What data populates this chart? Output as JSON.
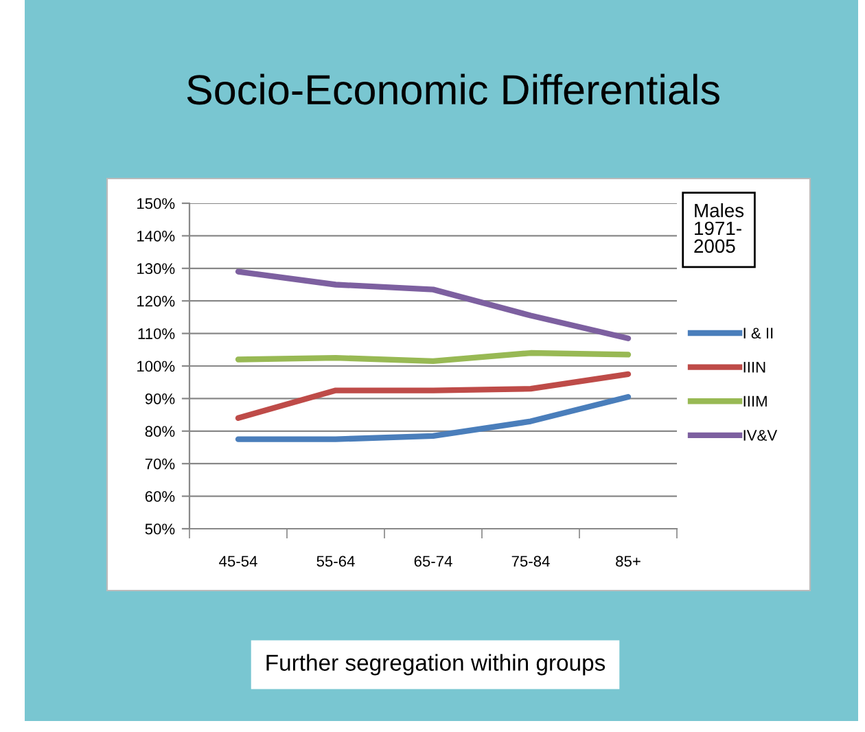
{
  "chart_data": {
    "type": "line",
    "title": "Socio-Economic Differentials",
    "legend_title": "Males\n1971-\n2005",
    "annotations": [
      "Further segregation within groups"
    ],
    "categories": [
      "45-54",
      "55-64",
      "65-74",
      "75-84",
      "85+"
    ],
    "series": [
      {
        "name": "I & II",
        "color": "#4a7ebb",
        "values": [
          77.5,
          77.5,
          78.5,
          83,
          90.5
        ]
      },
      {
        "name": "IIIN",
        "color": "#be4b48",
        "values": [
          84,
          92.5,
          92.5,
          93,
          97.5
        ]
      },
      {
        "name": "IIIM",
        "color": "#98b954",
        "values": [
          102,
          102.5,
          101.5,
          104,
          103.5
        ]
      },
      {
        "name": "IV&V",
        "color": "#7d60a0",
        "values": [
          129,
          125,
          123.5,
          115.5,
          108.5
        ]
      }
    ],
    "ylim": [
      50,
      150
    ],
    "yticks": [
      {
        "value": 50,
        "label": "50%"
      },
      {
        "value": 60,
        "label": "60%"
      },
      {
        "value": 70,
        "label": "70%"
      },
      {
        "value": 80,
        "label": "80%"
      },
      {
        "value": 90,
        "label": "90%"
      },
      {
        "value": 100,
        "label": "100%"
      },
      {
        "value": 110,
        "label": "110%"
      },
      {
        "value": 120,
        "label": "120%"
      },
      {
        "value": 130,
        "label": "130%"
      },
      {
        "value": 140,
        "label": "140%"
      },
      {
        "value": 150,
        "label": "150%"
      }
    ],
    "grid": "y",
    "legend": "right",
    "marker": "none",
    "line_style": "solid"
  }
}
